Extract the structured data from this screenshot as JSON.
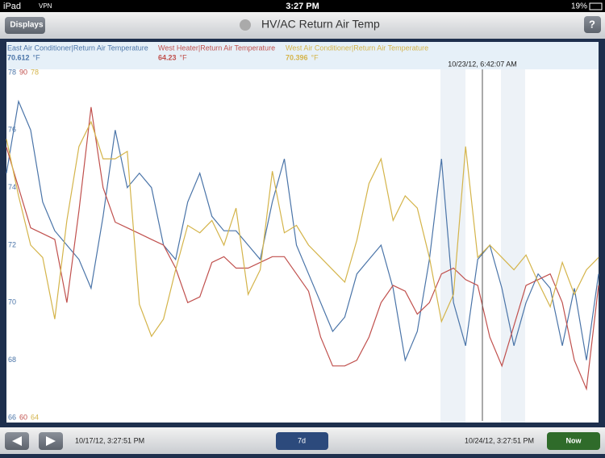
{
  "status_bar": {
    "device": "iPad",
    "vpn": "VPN",
    "time": "3:27 PM",
    "battery": "19%"
  },
  "nav": {
    "back": "Displays",
    "title": "HV/AC Return Air Temp",
    "help": "?"
  },
  "chart_data": {
    "type": "line",
    "unit": "°F",
    "cursor_label": "10/23/12, 6:42:07 AM",
    "ylim": [
      66,
      78
    ],
    "yticks": [
      66,
      68,
      70,
      72,
      74,
      76,
      78
    ],
    "y2lim": [
      60,
      90
    ],
    "y2ticks": [
      60,
      90
    ],
    "y3lim": [
      64,
      78
    ],
    "y3ticks": [
      64,
      78
    ],
    "series": [
      {
        "name": "East Air Conditioner|Return Air Temperature",
        "color": "#4a74a8",
        "axis": "y",
        "current": 70.612,
        "values": [
          74.5,
          77,
          76,
          73.5,
          72.5,
          72,
          71.5,
          70.5,
          73,
          76,
          74,
          74.5,
          74,
          72,
          71.5,
          73.5,
          74.5,
          73,
          72.5,
          72.5,
          72,
          71.5,
          73.5,
          75,
          72,
          71,
          70,
          69,
          69.5,
          71,
          71.5,
          72,
          70.5,
          68,
          69,
          71.5,
          75,
          70,
          68.5,
          71.5,
          72,
          70.5,
          68.5,
          70,
          71,
          70.5,
          68.5,
          70.5,
          68,
          71
        ]
      },
      {
        "name": "West Heater|Return Air Temperature",
        "color": "#c0504d",
        "axis": "y2",
        "current": 64.23,
        "values": [
          83.5,
          80,
          76.5,
          76,
          75.5,
          70,
          78,
          87,
          80,
          77,
          76.5,
          76,
          75.5,
          75,
          73,
          70,
          70.5,
          73.5,
          74,
          73,
          73,
          73.5,
          74,
          74,
          72.5,
          71,
          67,
          64.5,
          64.5,
          65,
          67,
          70,
          71.5,
          71,
          69,
          70,
          72.5,
          73,
          72,
          71.5,
          67,
          64.5,
          68,
          71.5,
          72,
          72.5,
          70,
          65,
          62.5,
          71.5
        ]
      },
      {
        "name": "West Air Conditioner|Return Air Temperature",
        "color": "#d4b44a",
        "axis": "y3",
        "current": 70.396,
        "values": [
          75.3,
          73,
          71,
          70.5,
          68,
          72,
          75,
          76,
          74.5,
          74.5,
          74.8,
          68.6,
          67.3,
          68,
          70,
          71.8,
          71.5,
          72,
          71,
          72.5,
          69,
          70,
          74,
          71.5,
          71.8,
          71,
          70.5,
          70,
          69.5,
          71.2,
          73.5,
          74.5,
          72,
          73,
          72.5,
          70.5,
          67.9,
          69,
          75,
          70.5,
          71,
          70.5,
          70,
          70.6,
          69.5,
          68.5,
          70.3,
          69,
          70,
          70.5
        ]
      }
    ]
  },
  "toolbar": {
    "start": "10/17/12, 3:27:51 PM",
    "range": "7d",
    "end": "10/24/12, 3:27:51 PM",
    "now": "Now"
  }
}
